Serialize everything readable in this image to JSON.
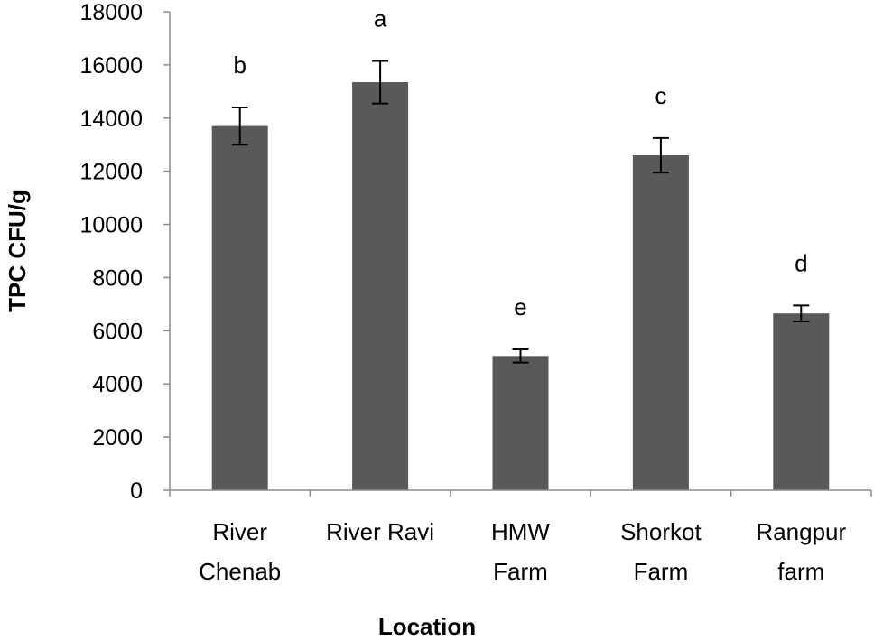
{
  "chart_data": {
    "type": "bar",
    "title": "",
    "xlabel": "Location",
    "ylabel": "TPC CFU/g",
    "categories": [
      [
        "River",
        "Chenab"
      ],
      [
        "River Ravi"
      ],
      [
        "HMW",
        "Farm"
      ],
      [
        "Shorkot",
        "Farm"
      ],
      [
        "Rangpur",
        "farm"
      ]
    ],
    "values": [
      13700,
      15350,
      5050,
      12600,
      6650
    ],
    "error": [
      700,
      800,
      250,
      650,
      300
    ],
    "significance": [
      "b",
      "a",
      "e",
      "c",
      "d"
    ],
    "ylim": [
      0,
      18000
    ],
    "yticks": [
      0,
      2000,
      4000,
      6000,
      8000,
      10000,
      12000,
      14000,
      16000,
      18000
    ],
    "grid": false,
    "colors": {
      "bar": "#595959",
      "axis": "#8c8c8c",
      "error": "#000000"
    }
  }
}
